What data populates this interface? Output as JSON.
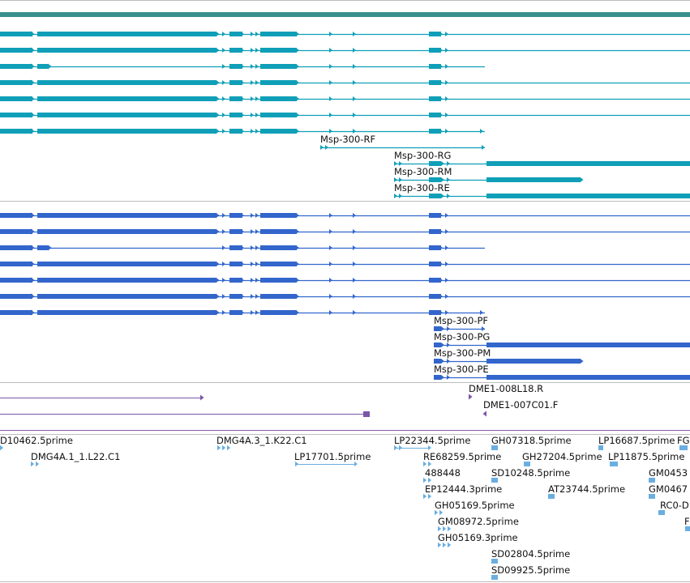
{
  "colors": {
    "top_bar": "#3a8f8c",
    "transcript": "#0f9fb8",
    "protein": "#3366cc",
    "bac": "#7a56a8",
    "est": "#6aaee0",
    "divider": "#bdbdbd"
  },
  "transcript_labels": [
    "Msp-300-RF",
    "Msp-300-RG",
    "Msp-300-RM",
    "Msp-300-RE"
  ],
  "protein_labels": [
    "Msp-300-PF",
    "Msp-300-PG",
    "Msp-300-PM",
    "Msp-300-PE"
  ],
  "bac_labels": [
    "DME1-008L18.R",
    "DME1-007C01.F"
  ],
  "est_labels": [
    "D10462.5prime",
    "DMG4A.1_1.L22.C1",
    "DMG4A.3_1.K22.C1",
    "LP17701.5prime",
    "LP22344.5prime",
    "RE68259.5prime",
    "488448",
    "EP12444.3prime",
    "GH05169.5prime",
    "GM08972.5prime",
    "GH05169.3prime",
    "GH07318.5prime",
    "SD10248.5prime",
    "GH27204.5prime",
    "AT23744.5prime",
    "SD02804.5prime",
    "SD09925.5prime",
    "LP16687.5prime",
    "FG",
    "LP11875.5prime",
    "GM0453",
    "GM0467",
    "RC0-D",
    "F"
  ]
}
